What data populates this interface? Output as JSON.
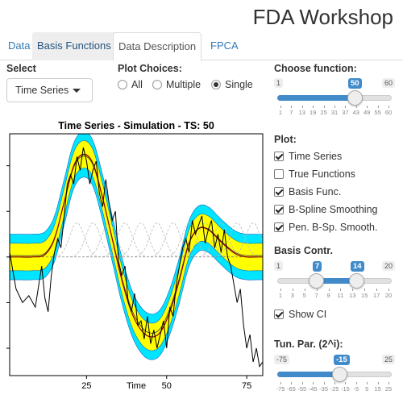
{
  "app": {
    "title": "FDA Workshop"
  },
  "tabs": [
    {
      "label": "Data",
      "state": "normal"
    },
    {
      "label": "Basis Functions",
      "state": "hover"
    },
    {
      "label": "Data Description",
      "state": "active"
    },
    {
      "label": "FPCA",
      "state": "normal"
    }
  ],
  "select": {
    "label": "Select",
    "value": "Time Series"
  },
  "plot_choices": {
    "label": "Plot Choices:",
    "options": [
      "All",
      "Multiple",
      "Single"
    ],
    "selected": "Single"
  },
  "choose_function": {
    "label": "Choose function:",
    "min": 1,
    "max": 60,
    "value": 50,
    "ticks": [
      "1",
      "7",
      "13",
      "19",
      "25",
      "31",
      "37",
      "43",
      "49",
      "55",
      "60"
    ]
  },
  "plot_options": {
    "label": "Plot:",
    "items": [
      {
        "label": "Time Series",
        "checked": true
      },
      {
        "label": "True Functions",
        "checked": false
      },
      {
        "label": "Basis Func.",
        "checked": true
      },
      {
        "label": "B-Spline Smoothing",
        "checked": true
      },
      {
        "label": "Pen. B-Sp. Smooth.",
        "checked": true
      }
    ]
  },
  "basis_contr": {
    "label": "Basis Contr.",
    "min": 1,
    "max": 20,
    "low": 7,
    "high": 14,
    "ticks": [
      "1",
      "3",
      "5",
      "7",
      "9",
      "11",
      "13",
      "15",
      "17",
      "20"
    ]
  },
  "show_ci": {
    "label": "Show CI",
    "checked": true
  },
  "tun_par": {
    "label": "Tun. Par. (2^i):",
    "min": -75,
    "max": 25,
    "value": -15,
    "ticks": [
      "-75",
      "-65",
      "-55",
      "-45",
      "-35",
      "-25",
      "-15",
      "-5",
      "5",
      "15",
      "25"
    ]
  },
  "chart_data": {
    "type": "line",
    "title": "Time Series - Simulation - TS: 50",
    "xlabel": "Time",
    "xlim": [
      1,
      80
    ],
    "ylim": [
      -2.6,
      2.7
    ],
    "xticks": [
      25,
      50,
      75
    ],
    "colors": {
      "outer_band": "#00e5ff",
      "inner_band": "#ffff00",
      "smooth": "#8b0000",
      "data": "#000000",
      "basis": "#bbbbbb"
    },
    "smooth_x": [
      1,
      4,
      8,
      12,
      15,
      18,
      21,
      24,
      27,
      30,
      33,
      36,
      39,
      42,
      45,
      48,
      51,
      54,
      57,
      60,
      63,
      66,
      69,
      72,
      75,
      78,
      80
    ],
    "smooth_y": [
      0.0,
      0.0,
      0.0,
      0.05,
      0.4,
      1.2,
      2.0,
      2.25,
      2.05,
      1.3,
      0.4,
      -0.5,
      -1.2,
      -1.6,
      -1.75,
      -1.65,
      -1.2,
      -0.5,
      0.3,
      0.62,
      0.6,
      0.4,
      0.2,
      0.05,
      0.0,
      0.0,
      0.0
    ],
    "inner_half_width": 0.3,
    "outer_half_width": 0.5,
    "series_x": [
      1,
      3,
      5,
      7,
      9,
      11,
      12,
      13,
      14,
      15,
      16,
      17,
      18,
      19,
      20,
      21,
      22,
      23,
      24,
      25,
      26,
      27,
      28,
      29,
      30,
      31,
      32,
      33,
      34,
      35,
      36,
      37,
      38,
      39,
      40,
      41,
      42,
      43,
      44,
      45,
      46,
      47,
      48,
      49,
      50,
      51,
      52,
      53,
      54,
      55,
      56,
      57,
      58,
      59,
      60,
      61,
      62,
      63,
      64,
      65,
      66,
      67,
      68,
      69,
      70,
      71,
      72,
      73,
      74,
      75,
      76,
      77,
      78,
      79,
      80
    ],
    "series_y": [
      0.1,
      -0.7,
      -1.0,
      -0.85,
      -1.1,
      -0.2,
      -0.9,
      -1.2,
      -0.4,
      0.1,
      0.4,
      0.2,
      0.9,
      1.6,
      1.8,
      1.6,
      2.2,
      1.9,
      2.4,
      2.1,
      1.6,
      1.9,
      2.1,
      1.4,
      1.1,
      1.7,
      1.2,
      0.8,
      1.0,
      -0.1,
      -0.4,
      -0.2,
      -1.0,
      -1.2,
      -0.8,
      -1.5,
      -1.4,
      -1.8,
      -1.3,
      -1.9,
      -1.6,
      -2.0,
      -1.7,
      -1.4,
      -2.0,
      -1.1,
      -1.3,
      -0.6,
      -0.2,
      0.2,
      0.4,
      0.1,
      0.8,
      0.5,
      0.7,
      0.9,
      0.3,
      0.6,
      0.8,
      0.2,
      0.5,
      0.1,
      0.6,
      0.0,
      -0.2,
      -0.6,
      -1.0,
      -0.7,
      -1.5,
      -2.0,
      -1.7,
      -2.3,
      -2.0,
      -2.4,
      -2.3
    ],
    "basis_centers": [
      22,
      27,
      32,
      37,
      42,
      47,
      52,
      57,
      62,
      67,
      72,
      77
    ],
    "basis_height": 0.75
  }
}
